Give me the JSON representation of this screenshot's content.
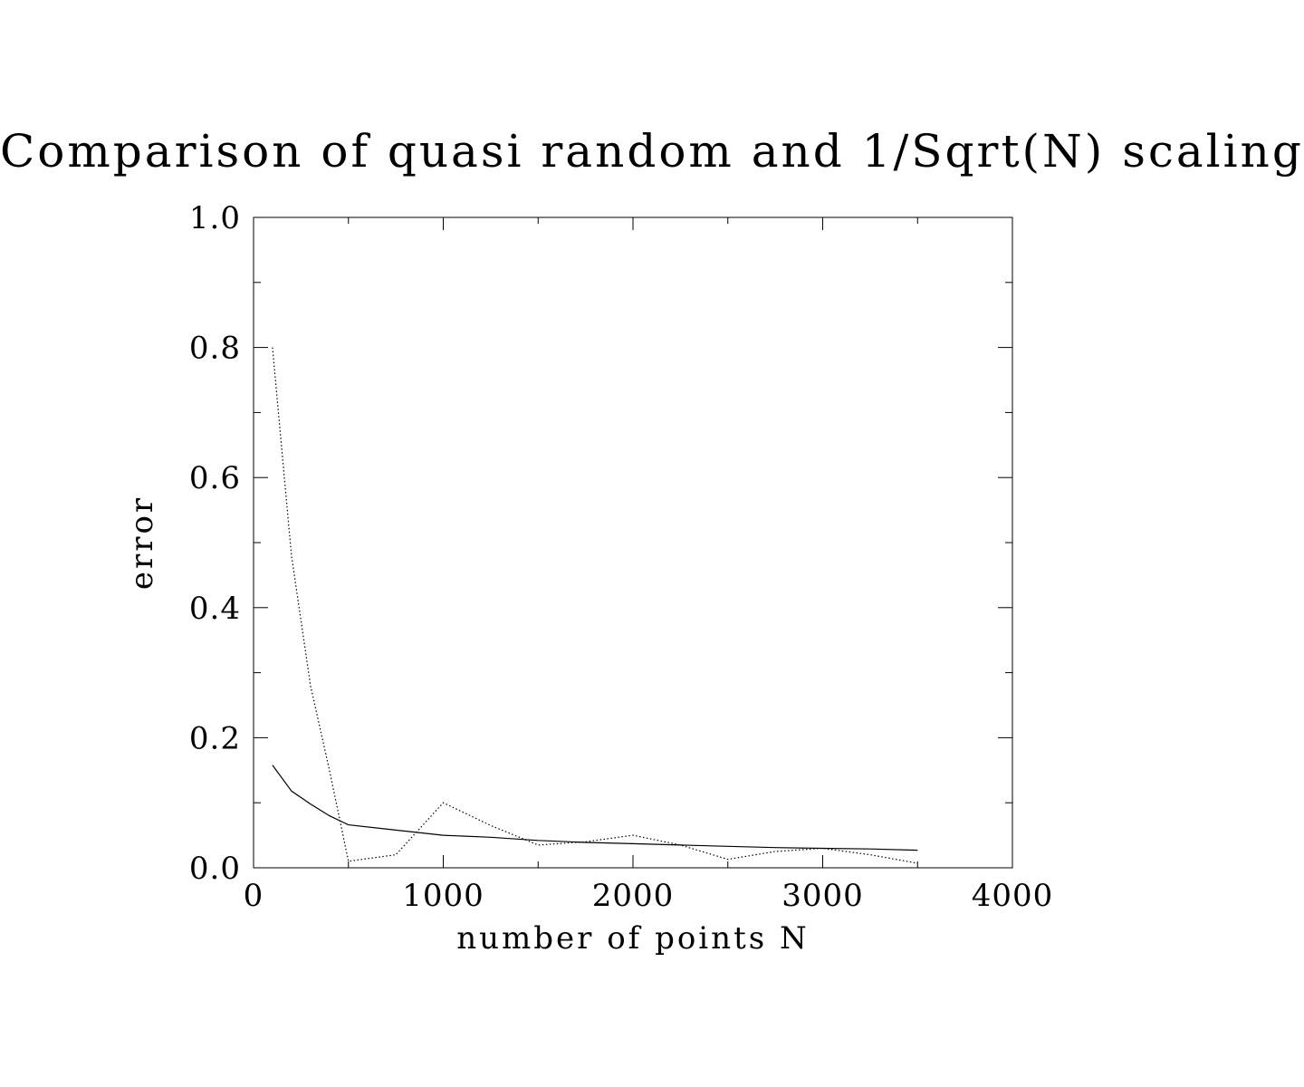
{
  "chart_data": {
    "type": "line",
    "title": "Comparison of quasi random and 1/Sqrt(N) scaling",
    "xlabel": "number of points N",
    "ylabel": "error",
    "xlim": [
      0,
      4000
    ],
    "ylim": [
      0,
      1.0
    ],
    "x_ticks": [
      "0",
      "1000",
      "2000",
      "3000",
      "4000"
    ],
    "y_ticks": [
      "0.0",
      "0.2",
      "0.4",
      "0.6",
      "0.8",
      "1.0"
    ],
    "grid": false,
    "legend": "none",
    "series": [
      {
        "style": "dotted",
        "color": "#000000",
        "points": [
          [
            100,
            0.8
          ],
          [
            200,
            0.48
          ],
          [
            300,
            0.28
          ],
          [
            400,
            0.15
          ],
          [
            500,
            0.01
          ],
          [
            750,
            0.02
          ],
          [
            1000,
            0.1
          ],
          [
            1250,
            0.065
          ],
          [
            1500,
            0.035
          ],
          [
            1750,
            0.04
          ],
          [
            2000,
            0.05
          ],
          [
            2250,
            0.035
          ],
          [
            2500,
            0.013
          ],
          [
            2750,
            0.025
          ],
          [
            3000,
            0.03
          ],
          [
            3250,
            0.02
          ],
          [
            3500,
            0.007
          ]
        ]
      },
      {
        "style": "solid",
        "color": "#000000",
        "points": [
          [
            100,
            0.158
          ],
          [
            200,
            0.118
          ],
          [
            300,
            0.098
          ],
          [
            400,
            0.08
          ],
          [
            500,
            0.066
          ],
          [
            750,
            0.058
          ],
          [
            1000,
            0.05
          ],
          [
            1250,
            0.047
          ],
          [
            1500,
            0.042
          ],
          [
            1750,
            0.039
          ],
          [
            2000,
            0.037
          ],
          [
            2250,
            0.035
          ],
          [
            2500,
            0.033
          ],
          [
            2750,
            0.031
          ],
          [
            3000,
            0.03
          ],
          [
            3250,
            0.029
          ],
          [
            3500,
            0.027
          ]
        ]
      }
    ]
  }
}
